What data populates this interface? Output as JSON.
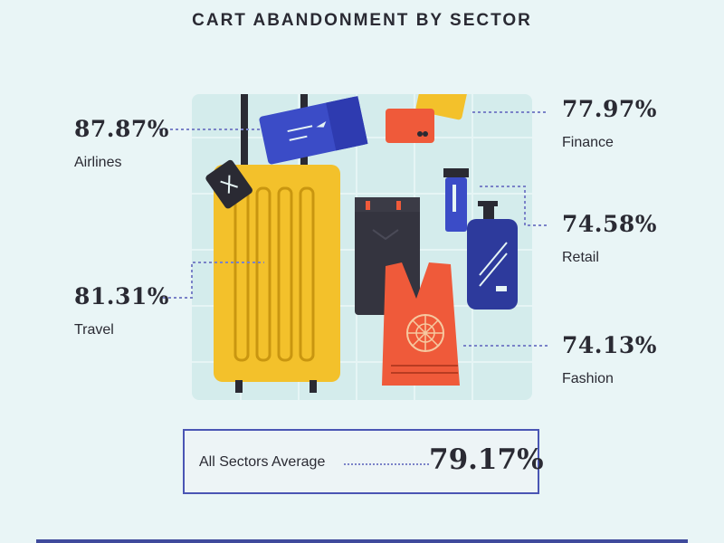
{
  "chart_data": {
    "type": "table",
    "title": "CART ABANDONMENT BY SECTOR",
    "categories": [
      "Airlines",
      "Travel",
      "Finance",
      "Retail",
      "Fashion"
    ],
    "values_text": [
      "87.87%",
      "81.31%",
      "77.97%",
      "74.58%",
      "74.13%"
    ],
    "values": [
      87.87,
      81.31,
      77.97,
      74.58,
      74.13
    ],
    "average": {
      "label": "All Sectors Average",
      "value_text": "79.17%",
      "value": 79.17
    }
  },
  "colors": {
    "background": "#e9f5f6",
    "panel": "#d4ecec",
    "accent": "#4a55b4",
    "suitcase": "#f3c12b",
    "ticket": "#3b4cc7",
    "bag": "#ef5a3a",
    "bottle": "#2d3a9c"
  }
}
